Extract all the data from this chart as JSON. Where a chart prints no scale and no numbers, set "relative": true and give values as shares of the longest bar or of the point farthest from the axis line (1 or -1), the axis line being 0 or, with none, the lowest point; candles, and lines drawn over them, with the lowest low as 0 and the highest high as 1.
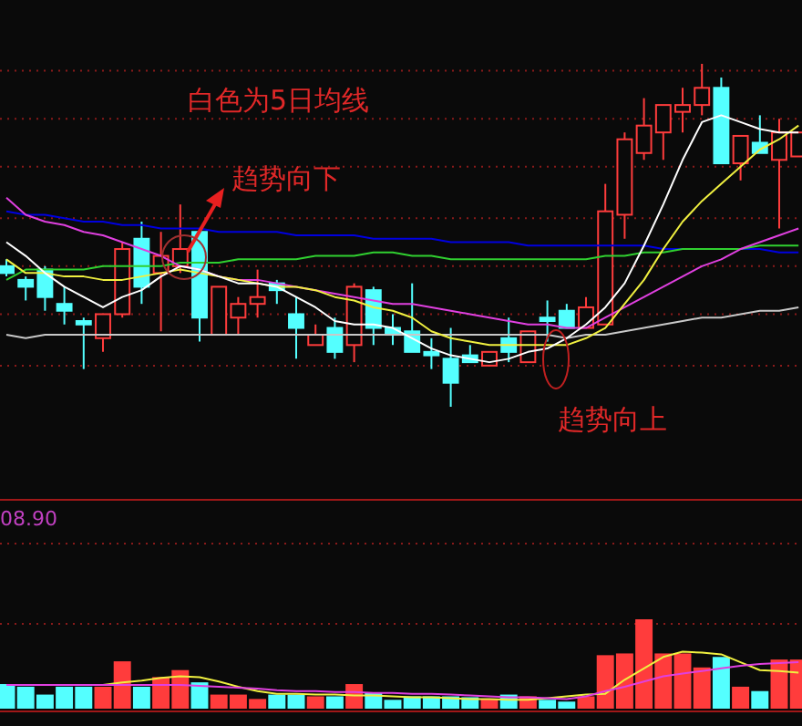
{
  "chart_data": [
    {
      "type": "candlestick",
      "relative": true,
      "ref_lines": [
        {
          "axis": "y",
          "value": 0.98,
          "color": "#8a1a1a",
          "line_style": "dotted"
        },
        {
          "axis": "y",
          "value": 0.84,
          "color": "#8a1a1a",
          "line_style": "dotted"
        },
        {
          "axis": "y",
          "value": 0.7,
          "color": "#8a1a1a",
          "line_style": "dotted"
        },
        {
          "axis": "y",
          "value": 0.55,
          "color": "#8a1a1a",
          "line_style": "dotted"
        },
        {
          "axis": "y",
          "value": 0.41,
          "color": "#8a1a1a",
          "line_style": "dotted"
        },
        {
          "axis": "y",
          "value": 0.27,
          "color": "#8a1a1a",
          "line_style": "dotted"
        },
        {
          "axis": "y",
          "value": 0.12,
          "color": "#8a1a1a",
          "line_style": "dotted"
        }
      ],
      "categories": [
        null,
        null,
        null,
        null,
        null,
        null,
        null,
        null,
        null,
        null,
        null,
        null,
        null,
        null,
        null,
        null,
        null,
        null,
        null,
        null,
        null,
        null,
        null,
        null,
        null,
        null,
        null,
        null,
        null,
        null,
        null,
        null,
        null,
        null,
        null,
        null,
        null,
        null,
        null,
        null,
        null,
        null
      ],
      "ohlc": [
        [
          0.41,
          0.43,
          0.38,
          0.39
        ],
        [
          0.37,
          0.38,
          0.31,
          0.35
        ],
        [
          0.4,
          0.41,
          0.28,
          0.32
        ],
        [
          0.3,
          0.35,
          0.24,
          0.28
        ],
        [
          0.25,
          0.26,
          0.11,
          0.24
        ],
        [
          0.2,
          0.27,
          0.16,
          0.27
        ],
        [
          0.27,
          0.48,
          0.26,
          0.46
        ],
        [
          0.49,
          0.54,
          0.3,
          0.35
        ],
        [
          0.39,
          0.51,
          0.22,
          0.44
        ],
        [
          0.41,
          0.59,
          0.39,
          0.46
        ],
        [
          0.51,
          0.51,
          0.19,
          0.26
        ],
        [
          0.21,
          0.35,
          0.21,
          0.35
        ],
        [
          0.26,
          0.32,
          0.21,
          0.3
        ],
        [
          0.3,
          0.4,
          0.26,
          0.32
        ],
        [
          0.36,
          0.37,
          0.3,
          0.34
        ],
        [
          0.27,
          0.32,
          0.14,
          0.23
        ],
        [
          0.18,
          0.24,
          0.18,
          0.21
        ],
        [
          0.23,
          0.26,
          0.14,
          0.16
        ],
        [
          0.18,
          0.36,
          0.13,
          0.35
        ],
        [
          0.34,
          0.35,
          0.18,
          0.23
        ],
        [
          0.23,
          0.27,
          0.18,
          0.21
        ],
        [
          0.22,
          0.36,
          0.16,
          0.16
        ],
        [
          0.16,
          0.2,
          0.11,
          0.15
        ],
        [
          0.14,
          0.23,
          0,
          0.07
        ],
        [
          0.15,
          0.18,
          0.13,
          0.13
        ],
        [
          0.12,
          0.16,
          0.12,
          0.16
        ],
        [
          0.2,
          0.26,
          0.13,
          0.16
        ],
        [
          0.13,
          0.22,
          0.13,
          0.22
        ],
        [
          0.26,
          0.31,
          0.19,
          0.25
        ],
        [
          0.28,
          0.3,
          0.23,
          0.23
        ],
        [
          0.23,
          0.32,
          0.23,
          0.29
        ],
        [
          0.24,
          0.65,
          0.24,
          0.57
        ],
        [
          0.56,
          0.8,
          0.49,
          0.78
        ],
        [
          0.74,
          0.9,
          0.72,
          0.82
        ],
        [
          0.8,
          0.88,
          0.72,
          0.88
        ],
        [
          0.86,
          0.93,
          0.8,
          0.88
        ],
        [
          0.88,
          1.0,
          0.85,
          0.93
        ],
        [
          0.93,
          0.96,
          0.71,
          0.71
        ],
        [
          0.71,
          0.79,
          0.66,
          0.79
        ],
        [
          0.77,
          0.85,
          0.74,
          0.74
        ],
        [
          0.72,
          0.84,
          0.52,
          0.8
        ],
        [
          0.73,
          0.8,
          0.73,
          0.8
        ]
      ],
      "colors": [
        "#54ffff",
        "#54ffff",
        "#54ffff",
        "#54ffff",
        "#54ffff",
        "#ff3c3c",
        "#ff3c3c",
        "#54ffff",
        "#ff3c3c",
        "#ff3c3c",
        "#54ffff",
        "#ff3c3c",
        "#ff3c3c",
        "#ff3c3c",
        "#54ffff",
        "#54ffff",
        "#ff3c3c",
        "#54ffff",
        "#ff3c3c",
        "#54ffff",
        "#54ffff",
        "#54ffff",
        "#54ffff",
        "#54ffff",
        "#54ffff",
        "#ff3c3c",
        "#54ffff",
        "#ff3c3c",
        "#54ffff",
        "#54ffff",
        "#ff3c3c",
        "#ff3c3c",
        "#ff3c3c",
        "#ff3c3c",
        "#ff3c3c",
        "#ff3c3c",
        "#ff3c3c",
        "#54ffff",
        "#ff3c3c",
        "#54ffff",
        "#ff3c3c",
        "#ff3c3c"
      ],
      "series": [
        {
          "type": "line",
          "color": "#c8c8c8",
          "values": [
            0.21,
            0.2,
            0.21,
            0.21,
            0.21,
            0.21,
            0.21,
            0.21,
            0.21,
            0.21,
            0.21,
            0.21,
            0.21,
            0.21,
            0.21,
            0.21,
            0.21,
            0.21,
            0.21,
            0.21,
            0.21,
            0.21,
            0.21,
            0.21,
            0.21,
            0.21,
            0.21,
            0.21,
            0.21,
            0.2,
            0.21,
            0.21,
            0.22,
            0.23,
            0.24,
            0.25,
            0.26,
            0.26,
            0.27,
            0.28,
            0.28,
            0.29
          ]
        },
        {
          "type": "line",
          "color": "#0000e0",
          "values": [
            0.57,
            0.56,
            0.56,
            0.55,
            0.54,
            0.54,
            0.53,
            0.53,
            0.52,
            0.52,
            0.52,
            0.51,
            0.51,
            0.51,
            0.51,
            0.5,
            0.5,
            0.5,
            0.5,
            0.49,
            0.49,
            0.49,
            0.49,
            0.48,
            0.48,
            0.48,
            0.48,
            0.47,
            0.47,
            0.47,
            0.47,
            0.47,
            0.47,
            0.47,
            0.46,
            0.46,
            null,
            null,
            0.46,
            0.46,
            0.45,
            0.45
          ]
        },
        {
          "type": "line",
          "color": "#30d030",
          "values": [
            0.37,
            0.4,
            0.4,
            0.4,
            0.4,
            0.41,
            0.41,
            0.41,
            0.41,
            0.42,
            0.42,
            0.42,
            0.43,
            0.43,
            0.43,
            0.43,
            0.44,
            0.44,
            0.44,
            0.45,
            0.45,
            0.44,
            0.44,
            0.43,
            0.43,
            0.43,
            0.43,
            0.43,
            0.43,
            0.43,
            0.43,
            0.44,
            0.44,
            0.45,
            0.45,
            0.46,
            0.46,
            0.46,
            0.46,
            0.47,
            0.47,
            0.47
          ]
        },
        {
          "type": "line",
          "color": "#e040e0",
          "values": [
            0.61,
            0.56,
            0.54,
            0.53,
            0.51,
            0.5,
            0.48,
            0.46,
            0.44,
            0.41,
            0.4,
            0.38,
            0.37,
            0.37,
            0.36,
            0.35,
            0.34,
            0.33,
            0.32,
            0.31,
            0.3,
            0.3,
            0.29,
            0.28,
            0.27,
            0.26,
            0.25,
            0.24,
            0.24,
            0.23,
            0.23,
            0.26,
            0.29,
            0.32,
            0.35,
            0.38,
            0.41,
            0.43,
            0.46,
            0.48,
            0.5,
            0.52
          ]
        },
        {
          "type": "line",
          "color": "#f0f040",
          "values": [
            0.43,
            0.39,
            0.39,
            0.38,
            0.38,
            0.37,
            0.37,
            0.38,
            0.39,
            0.4,
            0.39,
            0.38,
            0.37,
            0.36,
            0.35,
            0.35,
            0.34,
            0.32,
            0.31,
            0.29,
            0.28,
            0.26,
            0.22,
            0.2,
            0.19,
            0.18,
            0.18,
            0.18,
            0.18,
            0.18,
            0.2,
            0.23,
            0.3,
            0.37,
            0.46,
            0.54,
            0.6,
            0.65,
            0.7,
            0.75,
            0.78,
            0.82
          ]
        },
        {
          "type": "line",
          "color": "#ffffff",
          "values": [
            0.48,
            0.44,
            0.39,
            0.35,
            0.32,
            0.29,
            0.32,
            0.34,
            0.38,
            0.41,
            0.4,
            0.38,
            0.36,
            0.36,
            0.35,
            0.32,
            0.29,
            0.25,
            0.24,
            0.24,
            0.23,
            0.2,
            0.17,
            0.15,
            0.14,
            0.13,
            0.14,
            0.16,
            0.17,
            0.2,
            0.24,
            0.29,
            0.36,
            0.47,
            0.59,
            0.72,
            0.83,
            0.85,
            0.83,
            0.81,
            0.8,
            0.8
          ]
        }
      ],
      "annotations": [
        "白色为5日均线",
        "趋势向下",
        "趋势向上"
      ]
    },
    {
      "type": "bar",
      "relative": true,
      "categories": [
        null,
        null,
        null,
        null,
        null,
        null,
        null,
        null,
        null,
        null,
        null,
        null,
        null,
        null,
        null,
        null,
        null,
        null,
        null,
        null,
        null,
        null,
        null,
        null,
        null,
        null,
        null,
        null,
        null,
        null,
        null,
        null,
        null,
        null,
        null,
        null,
        null,
        null,
        null,
        null,
        null,
        null
      ],
      "series": [
        {
          "type": "bar",
          "values": [
            0.26,
            0.23,
            0.14,
            0.23,
            0.23,
            0.23,
            0.52,
            0.23,
            0.34,
            0.42,
            0.28,
            0.14,
            0.14,
            0.09,
            0.14,
            0.14,
            0.12,
            0.12,
            0.26,
            0.16,
            0.08,
            0.12,
            0.12,
            0.12,
            0.11,
            0.09,
            0.14,
            0.12,
            0.08,
            0.06,
            0.12,
            0.59,
            0.61,
            1.0,
            0.61,
            0.61,
            0.45,
            0.57,
            0.23,
            0.18,
            0.54,
            0.54
          ],
          "colors": [
            "#54ffff",
            "#54ffff",
            "#54ffff",
            "#54ffff",
            "#54ffff",
            "#ff3c3c",
            "#ff3c3c",
            "#54ffff",
            "#ff3c3c",
            "#ff3c3c",
            "#54ffff",
            "#ff3c3c",
            "#ff3c3c",
            "#ff3c3c",
            "#54ffff",
            "#54ffff",
            "#ff3c3c",
            "#54ffff",
            "#ff3c3c",
            "#54ffff",
            "#54ffff",
            "#54ffff",
            "#54ffff",
            "#54ffff",
            "#54ffff",
            "#ff3c3c",
            "#54ffff",
            "#ff3c3c",
            "#54ffff",
            "#54ffff",
            "#ff3c3c",
            "#ff3c3c",
            "#ff3c3c",
            "#ff3c3c",
            "#ff3c3c",
            "#ff3c3c",
            "#ff3c3c",
            "#54ffff",
            "#ff3c3c",
            "#54ffff",
            "#ff3c3c",
            "#ff3c3c"
          ]
        },
        {
          "type": "line",
          "color": "#f0f040",
          "values": [
            null,
            null,
            null,
            null,
            null,
            0.26,
            0.29,
            0.31,
            0.34,
            0.36,
            0.35,
            0.3,
            0.24,
            0.19,
            0.16,
            0.16,
            0.15,
            0.15,
            0.14,
            0.14,
            0.13,
            0.12,
            0.12,
            0.11,
            0.1,
            0.1,
            0.09,
            0.09,
            0.11,
            0.13,
            0.15,
            0.16,
            0.32,
            0.45,
            0.58,
            0.64,
            0.63,
            0.61,
            0.52,
            0.43,
            0.42,
            0.4
          ]
        },
        {
          "type": "line",
          "color": "#e040e0",
          "values": [
            0.26,
            0.26,
            0.26,
            0.26,
            0.26,
            0.26,
            0.26,
            0.26,
            0.26,
            0.26,
            0.25,
            0.24,
            0.23,
            0.22,
            0.2,
            0.19,
            0.19,
            0.18,
            0.18,
            0.17,
            0.17,
            0.16,
            0.16,
            0.15,
            0.14,
            0.13,
            0.12,
            0.12,
            0.11,
            0.1,
            0.13,
            0.19,
            0.24,
            0.3,
            0.36,
            0.39,
            0.42,
            0.45,
            0.48,
            0.5,
            0.51,
            0.52
          ]
        }
      ],
      "annotations": [
        "08.90"
      ]
    }
  ]
}
